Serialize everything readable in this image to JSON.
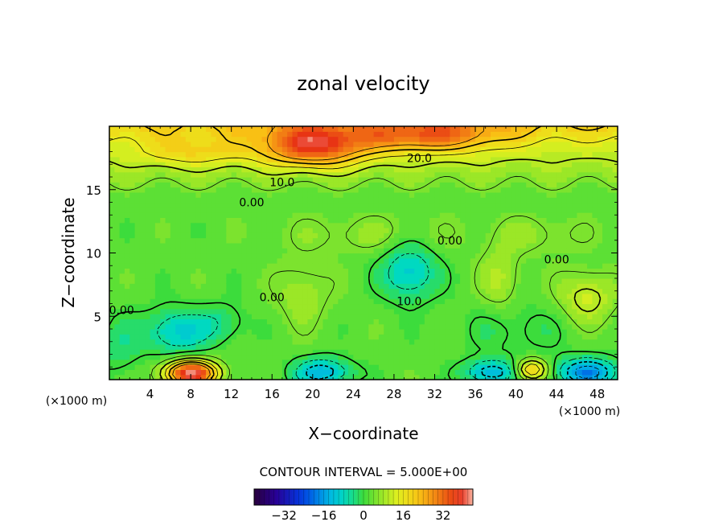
{
  "chart_data": {
    "type": "heatmap",
    "title": "zonal velocity",
    "xlabel": "X−coordinate",
    "ylabel": "Z−coordinate",
    "x_unit": "(×1000 m)",
    "z_unit": "(×1000 m)",
    "xlim": [
      0,
      50
    ],
    "ylim": [
      0,
      20
    ],
    "x_ticks": [
      "4",
      "8",
      "12",
      "16",
      "20",
      "24",
      "28",
      "32",
      "36",
      "40",
      "44",
      "48"
    ],
    "x_tick_values": [
      4,
      8,
      12,
      16,
      20,
      24,
      28,
      32,
      36,
      40,
      44,
      48
    ],
    "y_ticks": [
      "5",
      "10",
      "15"
    ],
    "y_tick_values": [
      5,
      10,
      15
    ],
    "contour_labels": [
      {
        "text": "20.0",
        "x": 30.5,
        "z": 17.5
      },
      {
        "text": "10.0",
        "x": 17.0,
        "z": 15.6
      },
      {
        "text": "0.00",
        "x": 14.0,
        "z": 14.0
      },
      {
        "text": "0.00",
        "x": 33.5,
        "z": 11.0
      },
      {
        "text": "0.00",
        "x": 44.0,
        "z": 9.5
      },
      {
        "text": "0.00",
        "x": 16.0,
        "z": 6.5
      },
      {
        "text": "0.00",
        "x": 1.2,
        "z": 5.5
      },
      {
        "text": "10.0",
        "x": 29.5,
        "z": 6.2
      }
    ],
    "contour_interval_label": "CONTOUR INTERVAL = 5.000E+00",
    "colorbar": {
      "min": -44,
      "max": 44,
      "ticks": [
        "−32",
        "−16",
        "0",
        "16",
        "32"
      ],
      "tick_values": [
        -32,
        -16,
        0,
        16,
        32
      ]
    },
    "features": [
      {
        "x": 20,
        "z": 18.5,
        "sx": 5,
        "sz": 1.6,
        "value": 26
      },
      {
        "x": 31,
        "z": 19.3,
        "sx": 7,
        "sz": 1.3,
        "value": 18
      },
      {
        "x": 8,
        "z": 18.0,
        "sx": 5,
        "sz": 1.2,
        "value": 8
      },
      {
        "x": 8,
        "z": 0.5,
        "sx": 2.5,
        "sz": 1.0,
        "value": 40
      },
      {
        "x": 6.5,
        "z": 3.8,
        "sx": 3.2,
        "sz": 1.8,
        "value": -12
      },
      {
        "x": 11,
        "z": 4.5,
        "sx": 2.5,
        "sz": 1.5,
        "value": -6
      },
      {
        "x": 29.5,
        "z": 8.5,
        "sx": 2.6,
        "sz": 2.2,
        "value": -13
      },
      {
        "x": 21,
        "z": 0.6,
        "sx": 2.8,
        "sz": 1.1,
        "value": -16
      },
      {
        "x": 37.5,
        "z": 0.6,
        "sx": 2.5,
        "sz": 1.0,
        "value": -16
      },
      {
        "x": 47,
        "z": 0.6,
        "sx": 3,
        "sz": 1.1,
        "value": -20
      },
      {
        "x": 41.5,
        "z": 0.8,
        "sx": 1.5,
        "sz": 0.8,
        "value": 20
      },
      {
        "x": 47,
        "z": 6.5,
        "sx": 2.7,
        "sz": 2.0,
        "value": 10
      },
      {
        "x": 38.5,
        "z": 8.0,
        "sx": 2,
        "sz": 2.5,
        "value": 7
      },
      {
        "x": 19,
        "z": 6.8,
        "sx": 2.5,
        "sz": 2.5,
        "value": 6
      },
      {
        "x": 42,
        "z": 11.5,
        "sx": 5,
        "sz": 1.5,
        "value": 4
      },
      {
        "x": 25,
        "z": 11.5,
        "sx": 8,
        "sz": 1.5,
        "value": 4
      },
      {
        "x": 40,
        "z": 4.0,
        "sx": 5,
        "sz": 2.2,
        "value": -4
      },
      {
        "x": 1,
        "z": 2.5,
        "sx": 2,
        "sz": 2.5,
        "value": -5
      }
    ]
  }
}
